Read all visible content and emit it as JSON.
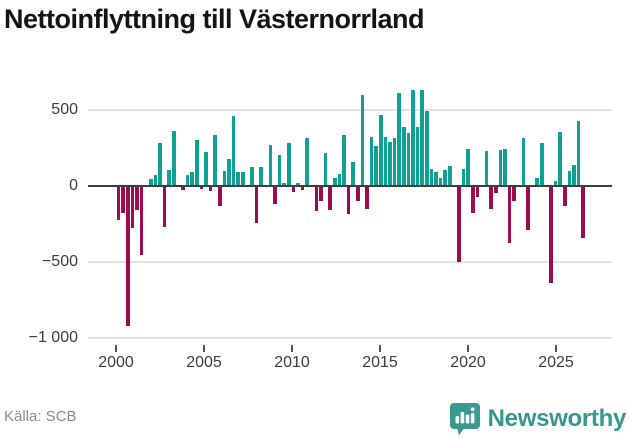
{
  "title": "Nettoinflyttning till Västernorrland",
  "source": "Källa: SCB",
  "brand": {
    "name": "Newsworthy",
    "color": "#36988e"
  },
  "colors": {
    "positive": "#0fa294",
    "negative": "#9e0c4f",
    "grid": "#e4e4e4",
    "zero_line": "#3d3d3d",
    "axis_text": "#3c3c3c",
    "source_text": "#8c8c8c",
    "title_text": "#141414"
  },
  "chart_data": {
    "type": "bar",
    "title": "Nettoinflyttning till Västernorrland",
    "xlabel": "",
    "ylabel": "",
    "period": "quarterly",
    "x_start_year": 2000,
    "x_tick_years": [
      2000,
      2005,
      2010,
      2015,
      2020,
      2025
    ],
    "x_tick_labels": [
      "2000",
      "2005",
      "2010",
      "2015",
      "2020",
      "2025"
    ],
    "y_ticks": [
      500,
      0,
      -500,
      -1000
    ],
    "y_tick_labels": [
      "500",
      "0",
      "−500",
      "−1 000"
    ],
    "ylim": [
      -1000,
      730
    ],
    "grid": "horizontal",
    "legend": "none",
    "values": [
      -220,
      -170,
      -915,
      -270,
      -150,
      -450,
      0,
      45,
      70,
      285,
      -265,
      105,
      365,
      0,
      -20,
      70,
      90,
      305,
      -15,
      225,
      -25,
      335,
      -125,
      100,
      180,
      460,
      90,
      95,
      0,
      125,
      -235,
      125,
      0,
      270,
      -110,
      205,
      20,
      285,
      -35,
      20,
      -20,
      315,
      0,
      -160,
      -90,
      220,
      -150,
      50,
      80,
      335,
      -180,
      160,
      -90,
      600,
      -145,
      320,
      265,
      465,
      325,
      290,
      315,
      615,
      390,
      350,
      630,
      390,
      630,
      495,
      110,
      90,
      55,
      105,
      130,
      0,
      -495,
      115,
      245,
      -170,
      -65,
      0,
      230,
      -145,
      -40,
      240,
      245,
      -370,
      -95,
      0,
      315,
      -285,
      0,
      55,
      280,
      0,
      -630,
      35,
      355,
      -125,
      100,
      140,
      430,
      -335
    ]
  }
}
